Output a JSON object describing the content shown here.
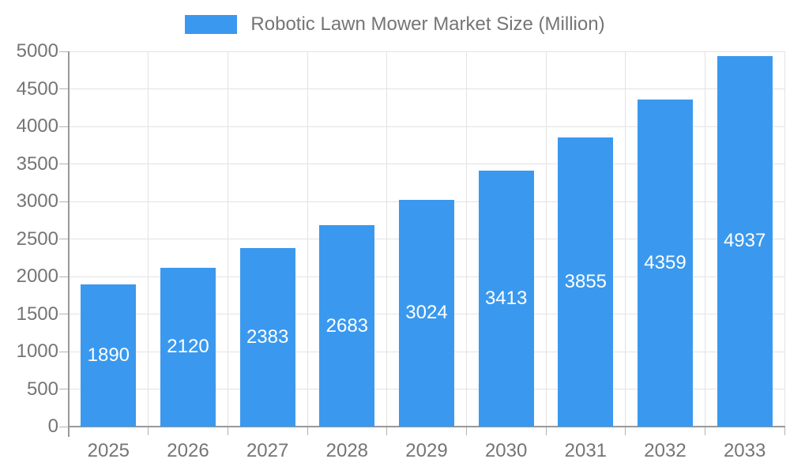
{
  "legend": {
    "label": "Robotic Lawn Mower Market Size (Million)"
  },
  "chart_data": {
    "type": "bar",
    "title": "Robotic Lawn Mower Market Size (Million)",
    "categories": [
      "2025",
      "2026",
      "2027",
      "2028",
      "2029",
      "2030",
      "2031",
      "2032",
      "2033"
    ],
    "values": [
      1890,
      2120,
      2383,
      2683,
      3024,
      3413,
      3855,
      4359,
      4937
    ],
    "xlabel": "",
    "ylabel": "",
    "ylim": [
      0,
      5000
    ],
    "ytick_step": 500,
    "grid": true,
    "legend_position": "top-center",
    "colors": {
      "bar": "#3A99EE",
      "bar_label": "#FFFFFF",
      "axis_text": "#757575",
      "grid_line": "#E3E3E3",
      "axis_line": "#999999",
      "tick": "#B3B3B3",
      "background": "#FFFFFF"
    }
  }
}
